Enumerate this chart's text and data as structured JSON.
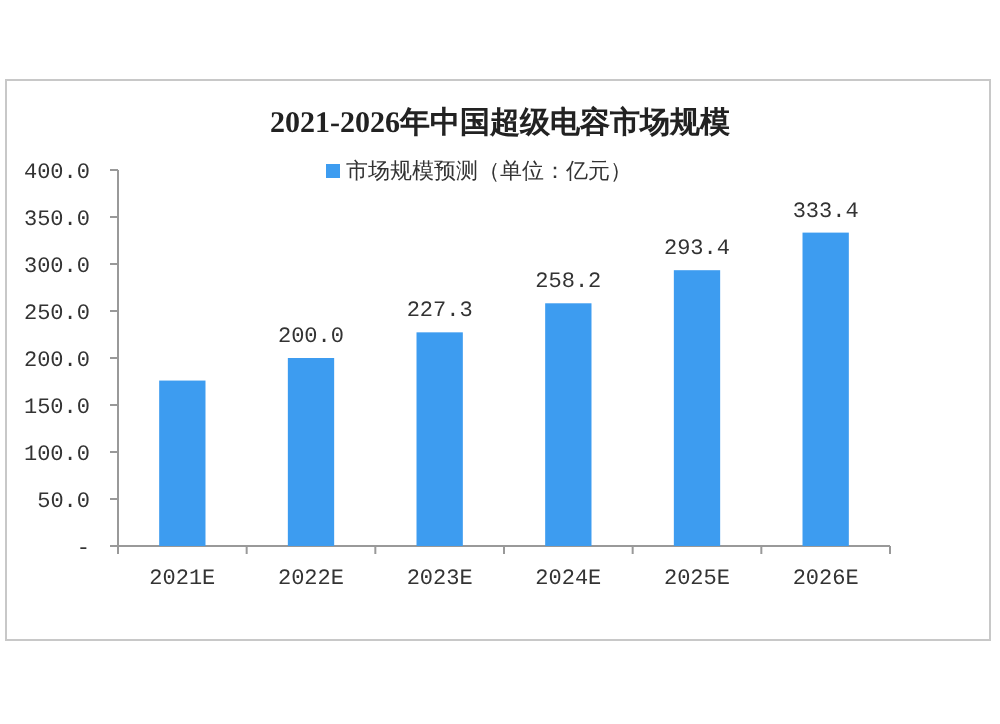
{
  "chart_data": {
    "type": "bar",
    "title": "2021-2026年中国超级电容市场规模",
    "categories": [
      "2021E",
      "2022E",
      "2023E",
      "2024E",
      "2025E",
      "2026E"
    ],
    "series": [
      {
        "name": "市场规模预测（单位：亿元）",
        "color": "#3d9cf0",
        "values": [
          176,
          200.0,
          227.3,
          258.2,
          293.4,
          333.4
        ],
        "value_labels": [
          null,
          "200.0",
          "227.3",
          "258.2",
          "293.4",
          "333.4"
        ]
      }
    ],
    "ylim": [
      0,
      400
    ],
    "yticks": [
      {
        "value": 0,
        "label": "-"
      },
      {
        "value": 50,
        "label": "50.0"
      },
      {
        "value": 100,
        "label": "100.0"
      },
      {
        "value": 150,
        "label": "150.0"
      },
      {
        "value": 200,
        "label": "200.0"
      },
      {
        "value": 250,
        "label": "250.0"
      },
      {
        "value": 300,
        "label": "300.0"
      },
      {
        "value": 350,
        "label": "350.0"
      },
      {
        "value": 400,
        "label": "400.0"
      }
    ],
    "grid": false,
    "legend": "top"
  }
}
